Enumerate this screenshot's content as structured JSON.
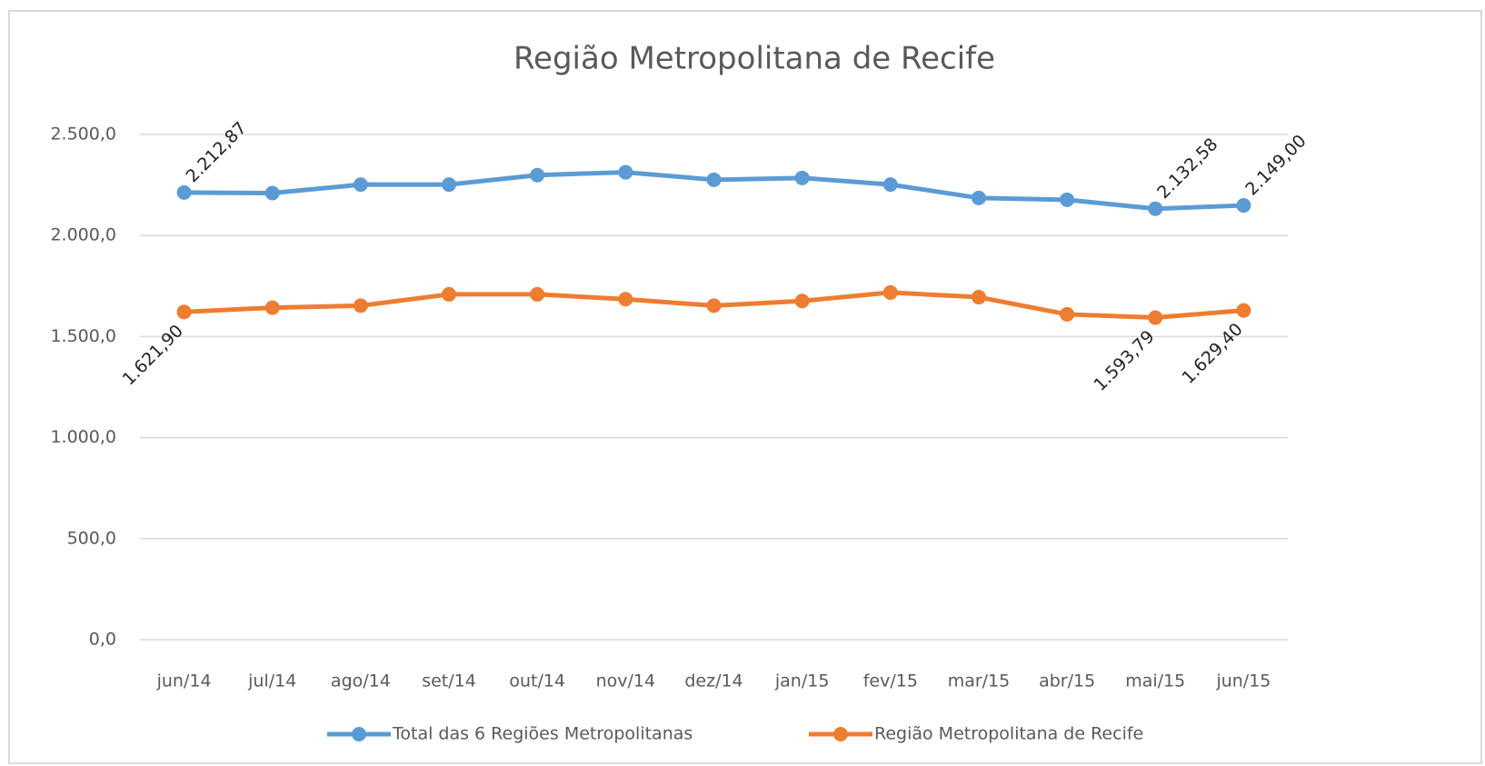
{
  "chart_data": {
    "type": "line",
    "title": "Região Metropolitana de Recife",
    "categories": [
      "jun/14",
      "jul/14",
      "ago/14",
      "set/14",
      "out/14",
      "nov/14",
      "dez/14",
      "jan/15",
      "fev/15",
      "mar/15",
      "abr/15",
      "mai/15",
      "jun/15"
    ],
    "series": [
      {
        "name": "Total das 6 Regiões Metropolitanas",
        "color": "#5b9bd5",
        "values": [
          2212.87,
          2210,
          2252,
          2252,
          2299,
          2313,
          2276,
          2285,
          2252,
          2186,
          2177,
          2132.58,
          2149.0
        ],
        "value_labels": [
          "2.212,87",
          null,
          null,
          null,
          null,
          null,
          null,
          null,
          null,
          null,
          null,
          "2.132,58",
          "2.149,00"
        ]
      },
      {
        "name": "Região Metropolitana de Recife",
        "color": "#ed7d31",
        "values": [
          1621.9,
          1643,
          1653,
          1709,
          1709,
          1685,
          1653,
          1676,
          1718,
          1695,
          1610,
          1593.79,
          1629.4
        ],
        "value_labels": [
          "1.621,90",
          null,
          null,
          null,
          null,
          null,
          null,
          null,
          null,
          null,
          null,
          "1.593,79",
          "1.629,40"
        ]
      }
    ],
    "ylim": [
      0,
      2500
    ],
    "yticks": [
      {
        "value": 0,
        "label": "0,0"
      },
      {
        "value": 500,
        "label": "500,0"
      },
      {
        "value": 1000,
        "label": "1.000,0"
      },
      {
        "value": 1500,
        "label": "1.500,0"
      },
      {
        "value": 2000,
        "label": "2.000,0"
      },
      {
        "value": 2500,
        "label": "2.500,0"
      }
    ],
    "grid": true,
    "legend": "bottom"
  }
}
